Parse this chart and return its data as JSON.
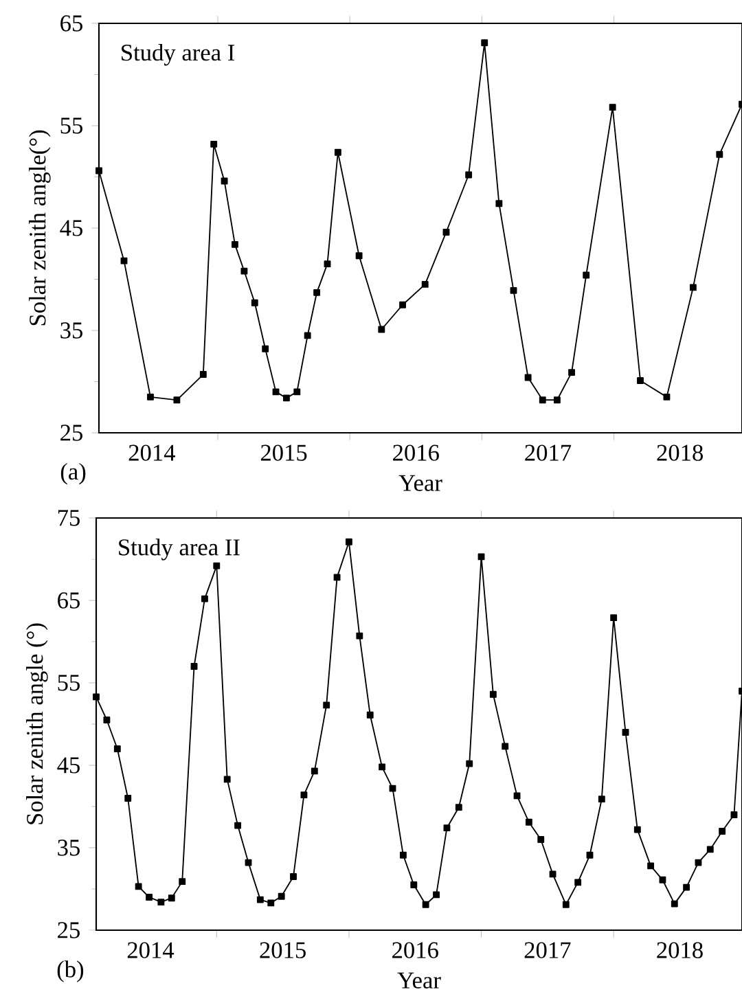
{
  "chart_data": [
    {
      "type": "line",
      "xlabel": "Year",
      "ylabel": "Solar zenith angle(°)",
      "annotations": [
        "Study area I",
        "(a)"
      ],
      "color": "#000000",
      "marker": "square",
      "line_style": "solid",
      "xlim": [
        2014.1,
        2018.97
      ],
      "ylim": [
        25,
        65
      ],
      "yticks": [
        25,
        35,
        45,
        55,
        65
      ],
      "xticks": [
        {
          "value": 2015,
          "label": null
        },
        {
          "value": 2016,
          "label": null
        },
        {
          "value": 2017,
          "label": null
        },
        {
          "value": 2018,
          "label": null
        },
        {
          "value": 2014.5,
          "label": "2014"
        },
        {
          "value": 2015.5,
          "label": "2015"
        },
        {
          "value": 2016.5,
          "label": "2016"
        },
        {
          "value": 2017.5,
          "label": "2017"
        },
        {
          "value": 2018.5,
          "label": "2018"
        }
      ],
      "x": [
        2014.1,
        2014.29,
        2014.49,
        2014.69,
        2014.89,
        2014.97,
        2015.05,
        2015.13,
        2015.2,
        2015.28,
        2015.36,
        2015.44,
        2015.52,
        2015.6,
        2015.68,
        2015.75,
        2015.83,
        2015.91,
        2016.07,
        2016.24,
        2016.4,
        2016.57,
        2016.73,
        2016.9,
        2017.02,
        2017.13,
        2017.24,
        2017.35,
        2017.46,
        2017.57,
        2017.68,
        2017.79,
        2017.99,
        2018.2,
        2018.4,
        2018.6,
        2018.8,
        2018.97
      ],
      "values": [
        50.6,
        41.8,
        28.5,
        28.2,
        30.7,
        53.2,
        49.6,
        43.4,
        40.8,
        37.7,
        33.2,
        29.0,
        28.4,
        29.0,
        34.5,
        38.7,
        41.5,
        52.4,
        42.3,
        35.1,
        37.5,
        39.5,
        44.6,
        50.2,
        63.1,
        47.4,
        38.9,
        30.4,
        28.2,
        28.2,
        30.9,
        40.4,
        56.8,
        30.1,
        28.5,
        39.2,
        52.2,
        57.1
      ]
    },
    {
      "type": "line",
      "xlabel": "Year",
      "ylabel": "Solar zenith angle (°)",
      "annotations": [
        "Study area II",
        "(b)"
      ],
      "color": "#000000",
      "marker": "square",
      "line_style": "solid",
      "xlim": [
        2014.09,
        2018.97
      ],
      "ylim": [
        25,
        75
      ],
      "yticks": [
        25,
        35,
        45,
        55,
        65,
        75
      ],
      "xticks": [
        {
          "value": 2015,
          "label": null
        },
        {
          "value": 2016,
          "label": null
        },
        {
          "value": 2017,
          "label": null
        },
        {
          "value": 2018,
          "label": null
        },
        {
          "value": 2014.5,
          "label": "2014"
        },
        {
          "value": 2015.5,
          "label": "2015"
        },
        {
          "value": 2016.5,
          "label": "2016"
        },
        {
          "value": 2017.5,
          "label": "2017"
        },
        {
          "value": 2018.5,
          "label": "2018"
        }
      ],
      "x": [
        2014.09,
        2014.17,
        2014.25,
        2014.33,
        2014.41,
        2014.49,
        2014.58,
        2014.66,
        2014.74,
        2014.83,
        2014.91,
        2015.0,
        2015.08,
        2015.16,
        2015.24,
        2015.33,
        2015.41,
        2015.49,
        2015.58,
        2015.66,
        2015.74,
        2015.83,
        2015.91,
        2016.0,
        2016.08,
        2016.16,
        2016.25,
        2016.33,
        2016.41,
        2016.49,
        2016.58,
        2016.66,
        2016.74,
        2016.83,
        2016.91,
        2017.0,
        2017.09,
        2017.18,
        2017.27,
        2017.36,
        2017.45,
        2017.54,
        2017.64,
        2017.73,
        2017.82,
        2017.91,
        2018.0,
        2018.09,
        2018.18,
        2018.28,
        2018.37,
        2018.46,
        2018.55,
        2018.64,
        2018.73,
        2018.82,
        2018.91,
        2018.97
      ],
      "values": [
        53.3,
        50.5,
        47.0,
        41.0,
        30.3,
        29.0,
        28.4,
        28.9,
        30.9,
        57.0,
        65.2,
        69.2,
        43.3,
        37.7,
        33.2,
        28.7,
        28.3,
        29.1,
        31.5,
        41.4,
        44.3,
        52.3,
        67.8,
        72.1,
        60.7,
        51.1,
        44.8,
        42.2,
        34.1,
        30.5,
        28.1,
        29.3,
        37.4,
        39.9,
        45.2,
        70.3,
        53.6,
        47.3,
        41.3,
        38.1,
        36.0,
        31.8,
        28.1,
        30.8,
        34.1,
        40.9,
        62.9,
        49.0,
        37.2,
        32.8,
        31.1,
        28.2,
        30.2,
        33.2,
        34.8,
        37.0,
        39.0,
        54.0
      ]
    }
  ]
}
